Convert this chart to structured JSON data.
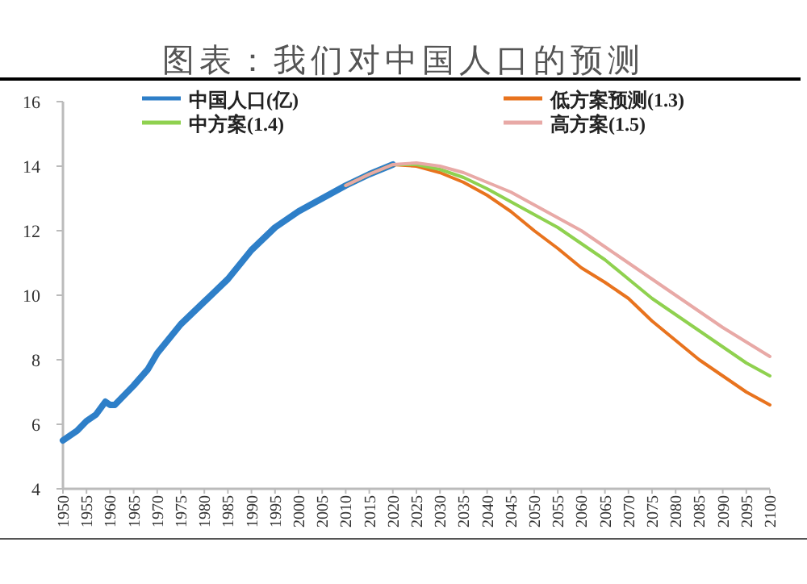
{
  "chart_data": {
    "type": "line",
    "title": "图表：我们对中国人口的预测",
    "legend": "top",
    "marker": "none",
    "line_style": "solid",
    "grid": false,
    "xlim": [
      1950,
      2100
    ],
    "xticks": [
      1950,
      1955,
      1960,
      1965,
      1970,
      1975,
      1980,
      1985,
      1990,
      1995,
      2000,
      2005,
      2010,
      2015,
      2020,
      2025,
      2030,
      2035,
      2040,
      2045,
      2050,
      2055,
      2060,
      2065,
      2070,
      2075,
      2080,
      2085,
      2090,
      2095,
      2100
    ],
    "ylim": [
      4,
      16
    ],
    "yticks": [
      4,
      6,
      8,
      10,
      12,
      14,
      16
    ],
    "series": [
      {
        "name": "中国人口(亿)",
        "color": "#2e7fc8",
        "x": [
          1950,
          1953,
          1955,
          1957,
          1959,
          1960,
          1961,
          1963,
          1965,
          1968,
          1970,
          1975,
          1980,
          1985,
          1990,
          1995,
          2000,
          2005,
          2010,
          2015,
          2020
        ],
        "values": [
          5.5,
          5.8,
          6.1,
          6.3,
          6.7,
          6.6,
          6.6,
          6.9,
          7.2,
          7.7,
          8.2,
          9.1,
          9.8,
          10.5,
          11.4,
          12.1,
          12.6,
          13.0,
          13.4,
          13.75,
          14.05
        ]
      },
      {
        "name": "低方案预测(1.3)",
        "color": "#e8731e",
        "x": [
          2010,
          2015,
          2020,
          2025,
          2030,
          2035,
          2040,
          2045,
          2050,
          2055,
          2060,
          2065,
          2070,
          2075,
          2080,
          2085,
          2090,
          2095,
          2100
        ],
        "values": [
          13.4,
          13.75,
          14.05,
          14.0,
          13.8,
          13.5,
          13.1,
          12.6,
          12.0,
          11.45,
          10.85,
          10.4,
          9.9,
          9.2,
          8.6,
          8.0,
          7.5,
          7.0,
          6.6
        ]
      },
      {
        "name": "中方案(1.4)",
        "color": "#8fd14f",
        "x": [
          2010,
          2015,
          2020,
          2025,
          2030,
          2035,
          2040,
          2045,
          2050,
          2055,
          2060,
          2065,
          2070,
          2075,
          2080,
          2085,
          2090,
          2095,
          2100
        ],
        "values": [
          13.4,
          13.75,
          14.05,
          14.05,
          13.9,
          13.65,
          13.3,
          12.9,
          12.5,
          12.1,
          11.6,
          11.1,
          10.5,
          9.9,
          9.4,
          8.9,
          8.4,
          7.9,
          7.5
        ]
      },
      {
        "name": "高方案(1.5)",
        "color": "#e8a9a6",
        "x": [
          2010,
          2015,
          2020,
          2025,
          2030,
          2035,
          2040,
          2045,
          2050,
          2055,
          2060,
          2065,
          2070,
          2075,
          2080,
          2085,
          2090,
          2095,
          2100
        ],
        "values": [
          13.4,
          13.75,
          14.05,
          14.1,
          14.0,
          13.8,
          13.5,
          13.2,
          12.8,
          12.4,
          12.0,
          11.5,
          11.0,
          10.5,
          10.0,
          9.5,
          9.0,
          8.55,
          8.1
        ]
      }
    ]
  }
}
